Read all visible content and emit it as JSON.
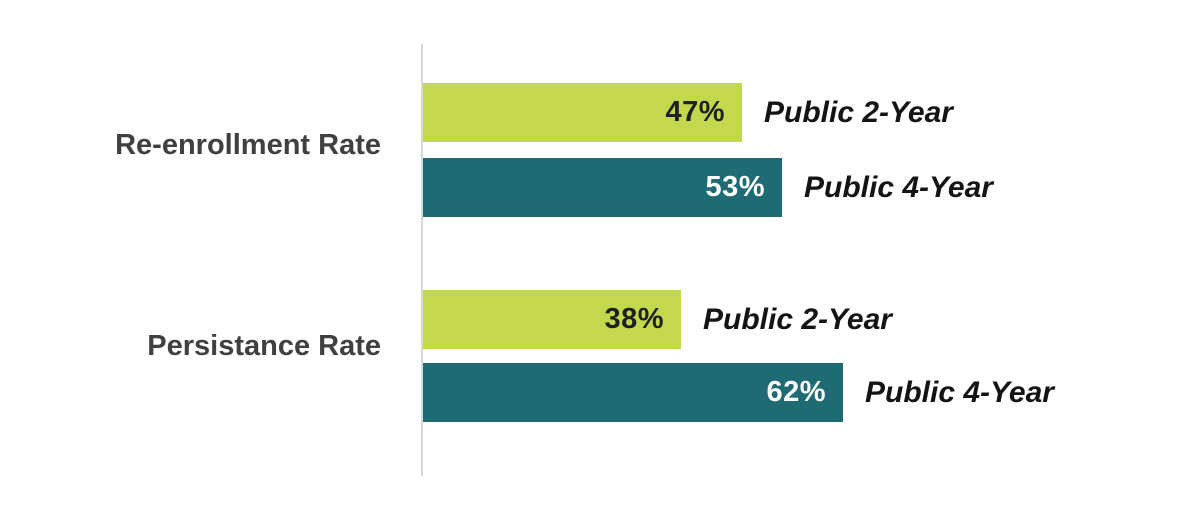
{
  "chart_data": {
    "type": "bar",
    "orientation": "horizontal",
    "title": "",
    "categories": [
      "Re-enrollment Rate",
      "Persistance Rate"
    ],
    "series": [
      {
        "name": "Public 2-Year",
        "color": "#c4d84d",
        "values": [
          47,
          38
        ]
      },
      {
        "name": "Public 4-Year",
        "color": "#1e6b74",
        "values": [
          53,
          62
        ]
      }
    ],
    "value_unit": "%",
    "axis": {
      "ticks_visible": false,
      "baseline_visible": true,
      "value_range": [
        0,
        100
      ]
    },
    "legend_position": "inline-right-of-bars",
    "groups": [
      {
        "label": "Re-enrollment Rate",
        "bars": [
          {
            "series": "Public 2-Year",
            "value": 47,
            "value_label": "47%",
            "color": "#c4d84d",
            "value_color": "#1f2121"
          },
          {
            "series": "Public 4-Year",
            "value": 53,
            "value_label": "53%",
            "color": "#1e6b74",
            "value_color": "#ffffff"
          }
        ]
      },
      {
        "label": "Persistance Rate",
        "bars": [
          {
            "series": "Public 2-Year",
            "value": 38,
            "value_label": "38%",
            "color": "#c4d84d",
            "value_color": "#1f2121"
          },
          {
            "series": "Public 4-Year",
            "value": 62,
            "value_label": "62%",
            "color": "#1e6b74",
            "value_color": "#ffffff"
          }
        ]
      }
    ]
  },
  "colors": {
    "green": "#c4d84d",
    "teal": "#1e6b74",
    "category_label": "#404042",
    "series_label": "#141414",
    "axis_line": "#d8d8d8",
    "background": "#ffffff"
  }
}
